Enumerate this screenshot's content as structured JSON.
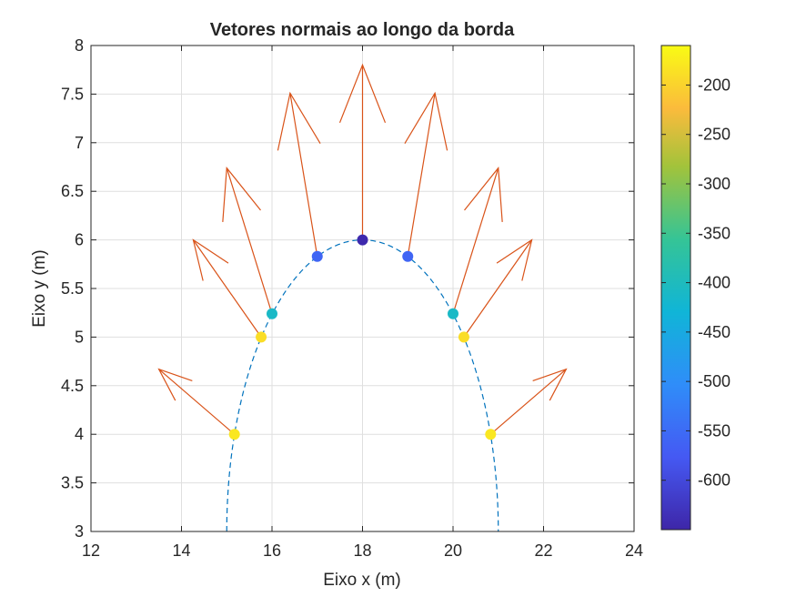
{
  "chart_data": {
    "type": "scatter",
    "title": "Vetores normais ao longo da borda",
    "xlabel": "Eixo x (m)",
    "ylabel": "Eixo y (m)",
    "xlim": [
      12,
      24
    ],
    "ylim": [
      3,
      8
    ],
    "xticks": [
      "12",
      "14",
      "16",
      "18",
      "20",
      "22",
      "24"
    ],
    "yticks": [
      "3",
      "3.5",
      "4",
      "4.5",
      "5",
      "5.5",
      "6",
      "6.5",
      "7",
      "7.5",
      "8"
    ],
    "grid": true,
    "boundary_curve": {
      "style": "dashed",
      "color": "#0072BD",
      "vertex": [
        18,
        6
      ],
      "x_at_y3": [
        15,
        21
      ]
    },
    "points": [
      {
        "x": 15.17,
        "y": 4.0,
        "value": -180,
        "u": -1.67,
        "v": 0.67
      },
      {
        "x": 15.76,
        "y": 5.0,
        "value": -190,
        "u": -1.5,
        "v": 1.0
      },
      {
        "x": 16.0,
        "y": 5.24,
        "value": -410,
        "u": -1.0,
        "v": 1.5
      },
      {
        "x": 17.0,
        "y": 5.83,
        "value": -560,
        "u": -0.6,
        "v": 1.68
      },
      {
        "x": 18.0,
        "y": 6.0,
        "value": -645,
        "u": 0.0,
        "v": 1.8
      },
      {
        "x": 19.0,
        "y": 5.83,
        "value": -560,
        "u": 0.6,
        "v": 1.68
      },
      {
        "x": 20.0,
        "y": 5.24,
        "value": -410,
        "u": 1.0,
        "v": 1.5
      },
      {
        "x": 20.24,
        "y": 5.0,
        "value": -190,
        "u": 1.5,
        "v": 1.0
      },
      {
        "x": 20.83,
        "y": 4.0,
        "value": -180,
        "u": 1.67,
        "v": 0.67
      }
    ],
    "arrow_color": "#D95319",
    "colorbar": {
      "range": [
        -650,
        -160
      ],
      "ticks": [
        "-200",
        "-250",
        "-300",
        "-350",
        "-400",
        "-450",
        "-500",
        "-550",
        "-600"
      ],
      "tick_values": [
        -200,
        -250,
        -300,
        -350,
        -400,
        -450,
        -500,
        -550,
        -600
      ],
      "colormap": "parula"
    }
  }
}
